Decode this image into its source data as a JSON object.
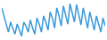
{
  "chart_data": {
    "type": "line",
    "values": [
      80,
      60,
      35,
      20,
      45,
      30,
      15,
      40,
      25,
      10,
      45,
      35,
      20,
      50,
      30,
      15,
      55,
      40,
      20,
      60,
      45,
      25,
      70,
      55,
      30,
      80,
      60,
      35,
      85,
      65,
      40,
      90,
      70,
      45,
      88,
      62,
      38,
      80,
      55,
      30,
      70,
      50,
      25,
      60,
      40,
      20,
      55,
      35
    ],
    "color": "#3a9ad9",
    "ylim": [
      5,
      95
    ],
    "grid": false,
    "tick_labels": false
  }
}
